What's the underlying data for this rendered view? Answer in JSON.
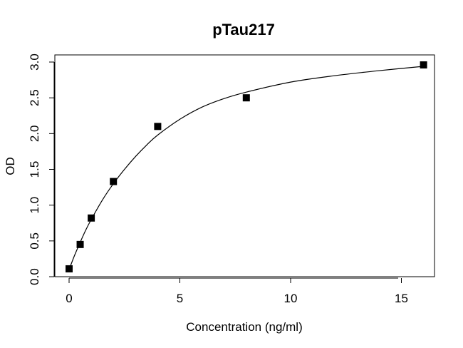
{
  "chart_data": {
    "type": "scatter",
    "title": "pTau217",
    "xlabel": "Concentration (ng/ml)",
    "ylabel": "OD",
    "xlim": [
      0,
      16
    ],
    "ylim": [
      0,
      3.0
    ],
    "x_ticks": [
      "0",
      "5",
      "10",
      "15"
    ],
    "y_ticks": [
      "0.0",
      "0.5",
      "1.0",
      "1.5",
      "2.0",
      "2.5",
      "3.0"
    ],
    "grid": false,
    "legend": "none",
    "marker": "filled-square",
    "colors": {
      "points": "#000000",
      "curve": "#000000",
      "frame": "#000000"
    },
    "points": [
      {
        "x": 0,
        "y": 0.11
      },
      {
        "x": 0.5,
        "y": 0.45
      },
      {
        "x": 1,
        "y": 0.82
      },
      {
        "x": 2,
        "y": 1.33
      },
      {
        "x": 4,
        "y": 2.1
      },
      {
        "x": 8,
        "y": 2.5
      },
      {
        "x": 16,
        "y": 2.96
      }
    ],
    "fit_curve": {
      "type": "smooth-fit",
      "x": [
        0,
        0.25,
        0.5,
        0.75,
        1,
        1.5,
        2,
        2.5,
        3,
        3.5,
        4,
        5,
        6,
        7,
        8,
        10,
        12,
        14,
        16
      ],
      "y": [
        0.1,
        0.3,
        0.48,
        0.65,
        0.8,
        1.07,
        1.3,
        1.5,
        1.68,
        1.84,
        1.98,
        2.2,
        2.37,
        2.49,
        2.58,
        2.72,
        2.81,
        2.88,
        2.94
      ]
    }
  }
}
